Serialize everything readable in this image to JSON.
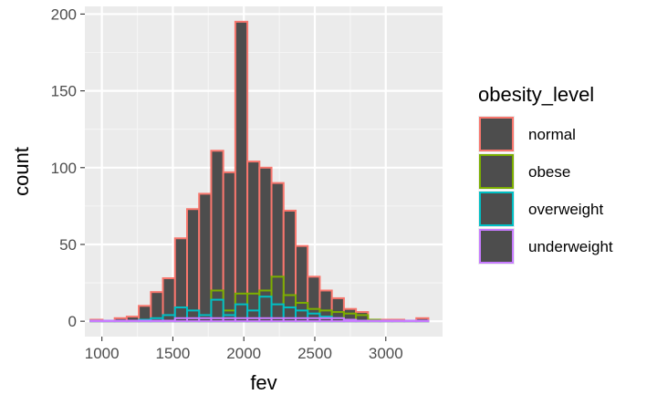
{
  "chart_data": {
    "type": "histogram",
    "xlabel": "fev",
    "ylabel": "count",
    "xlim": [
      880,
      3400
    ],
    "ylim": [
      -10,
      205
    ],
    "xticks": [
      1000,
      1500,
      2000,
      2500,
      3000
    ],
    "yticks": [
      0,
      50,
      100,
      150,
      200
    ],
    "bin_width": 85,
    "bin_start": 920,
    "grid": true,
    "fill_color": "#4d4d4d",
    "panel_background": "#ebebeb",
    "legend": {
      "title": "obesity_level",
      "position": "right"
    },
    "series": [
      {
        "name": "normal",
        "color": "#F8766D",
        "values": [
          1,
          0,
          2,
          3,
          10,
          19,
          28,
          54,
          73,
          83,
          111,
          97,
          195,
          104,
          100,
          90,
          72,
          49,
          29,
          20,
          15,
          8,
          6,
          1,
          1,
          1,
          0,
          2
        ]
      },
      {
        "name": "obese",
        "color": "#7CAE00",
        "values": [
          0,
          0,
          0,
          0,
          0,
          0,
          0,
          0,
          0,
          3,
          20,
          7,
          18,
          18,
          20,
          29,
          17,
          12,
          8,
          7,
          6,
          5,
          4,
          1,
          0,
          0,
          0,
          0
        ]
      },
      {
        "name": "overweight",
        "color": "#00BFC4",
        "values": [
          0,
          0,
          0,
          0,
          1,
          2,
          4,
          9,
          7,
          4,
          14,
          4,
          11,
          7,
          16,
          11,
          9,
          7,
          5,
          3,
          2,
          1,
          0,
          0,
          0,
          0,
          0,
          0
        ]
      },
      {
        "name": "underweight",
        "color": "#C77CFF",
        "values": [
          0,
          0,
          0,
          0,
          0,
          0,
          0,
          2,
          2,
          2,
          2,
          2,
          2,
          2,
          2,
          2,
          2,
          2,
          2,
          2,
          2,
          1,
          0,
          0,
          0,
          0,
          0,
          0
        ]
      }
    ]
  }
}
